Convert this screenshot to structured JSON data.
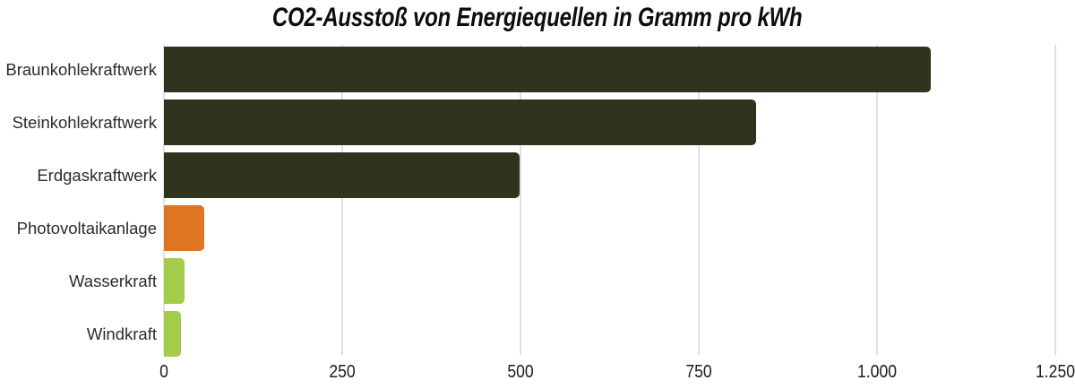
{
  "title": "CO2-Ausstoß von Energiequellen in Gramm pro kWh",
  "chart_data": {
    "type": "bar",
    "orientation": "horizontal",
    "title": "CO2-Ausstoß von Energiequellen in Gramm pro kWh",
    "categories": [
      "Braunkohlekraftwerk",
      "Steinkohlekraftwerk",
      "Erdgaskraftwerk",
      "Photovoltaikanlage",
      "Wasserkraft",
      "Windkraft"
    ],
    "values": [
      1075,
      830,
      499,
      56,
      29,
      24
    ],
    "bar_colors": [
      "#30331e",
      "#30331e",
      "#30331e",
      "#dd7522",
      "#a4cc4b",
      "#a4cc4b"
    ],
    "xlim": [
      0,
      1250
    ],
    "xticks": [
      0,
      250,
      500,
      750,
      1000,
      1250
    ],
    "xtick_labels": [
      "0",
      "250",
      "500",
      "750",
      "1.000",
      "1.250"
    ],
    "grid": "vertical",
    "legend": "none",
    "xlabel": "",
    "ylabel": "",
    "colors": {
      "fossil_bar": "#30331e",
      "solar_bar": "#dd7522",
      "renewable_bar": "#a4cc4b",
      "gridline": "#e1e1e1",
      "tick_text": "#1c1c1c",
      "label_text": "#2b2b2b",
      "title_text": "#0d0d0d",
      "background": "#ffffff"
    }
  }
}
